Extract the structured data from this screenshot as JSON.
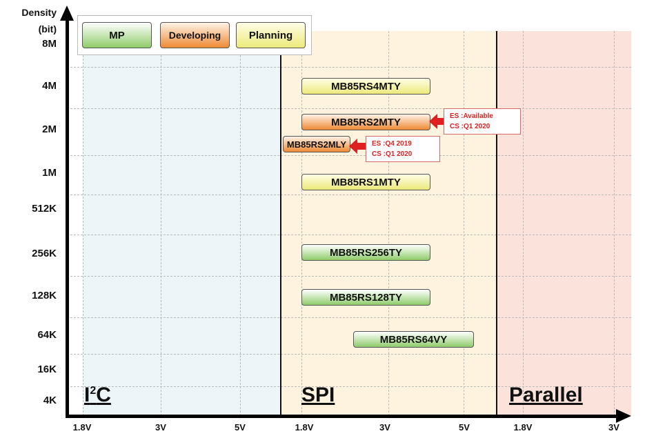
{
  "y_axis": {
    "title_line1": "Density",
    "title_line2": "(bit)",
    "ticks": [
      "8M",
      "4M",
      "2M",
      "1M",
      "512K",
      "256K",
      "128K",
      "64K",
      "16K",
      "4K"
    ]
  },
  "x_axis": {
    "ticks": [
      "1.8V",
      "3V",
      "5V",
      "1.8V",
      "3V",
      "5V",
      "1.8V",
      "3V"
    ]
  },
  "legend": {
    "mp": "MP",
    "developing": "Developing",
    "planning": "Planning"
  },
  "regions": {
    "i2c": "I",
    "i2c_sup": "2",
    "i2c_rest": "C",
    "spi": "SPI",
    "parallel": "Parallel"
  },
  "colors": {
    "i2c_bg": "#eef5f9",
    "spi_bg": "#fdf3df",
    "parallel_bg": "#fbe3dc",
    "mp": "#8fcc6a",
    "developing": "#ee8a35",
    "planning": "#ecea7a",
    "callout": "#e02020"
  },
  "products": [
    {
      "name": "MB85RS4MTY",
      "status": "planning"
    },
    {
      "name": "MB85RS2MTY",
      "status": "developing"
    },
    {
      "name": "MB85RS2MLY",
      "status": "developing"
    },
    {
      "name": "MB85RS1MTY",
      "status": "planning"
    },
    {
      "name": "MB85RS256TY",
      "status": "mp"
    },
    {
      "name": "MB85RS128TY",
      "status": "mp"
    },
    {
      "name": "MB85RS64VY",
      "status": "mp"
    }
  ],
  "callouts": [
    {
      "es": "ES :Available",
      "cs": "CS :Q1 2020"
    },
    {
      "es": "ES :Q4 2019",
      "cs": "CS :Q1 2020"
    }
  ]
}
